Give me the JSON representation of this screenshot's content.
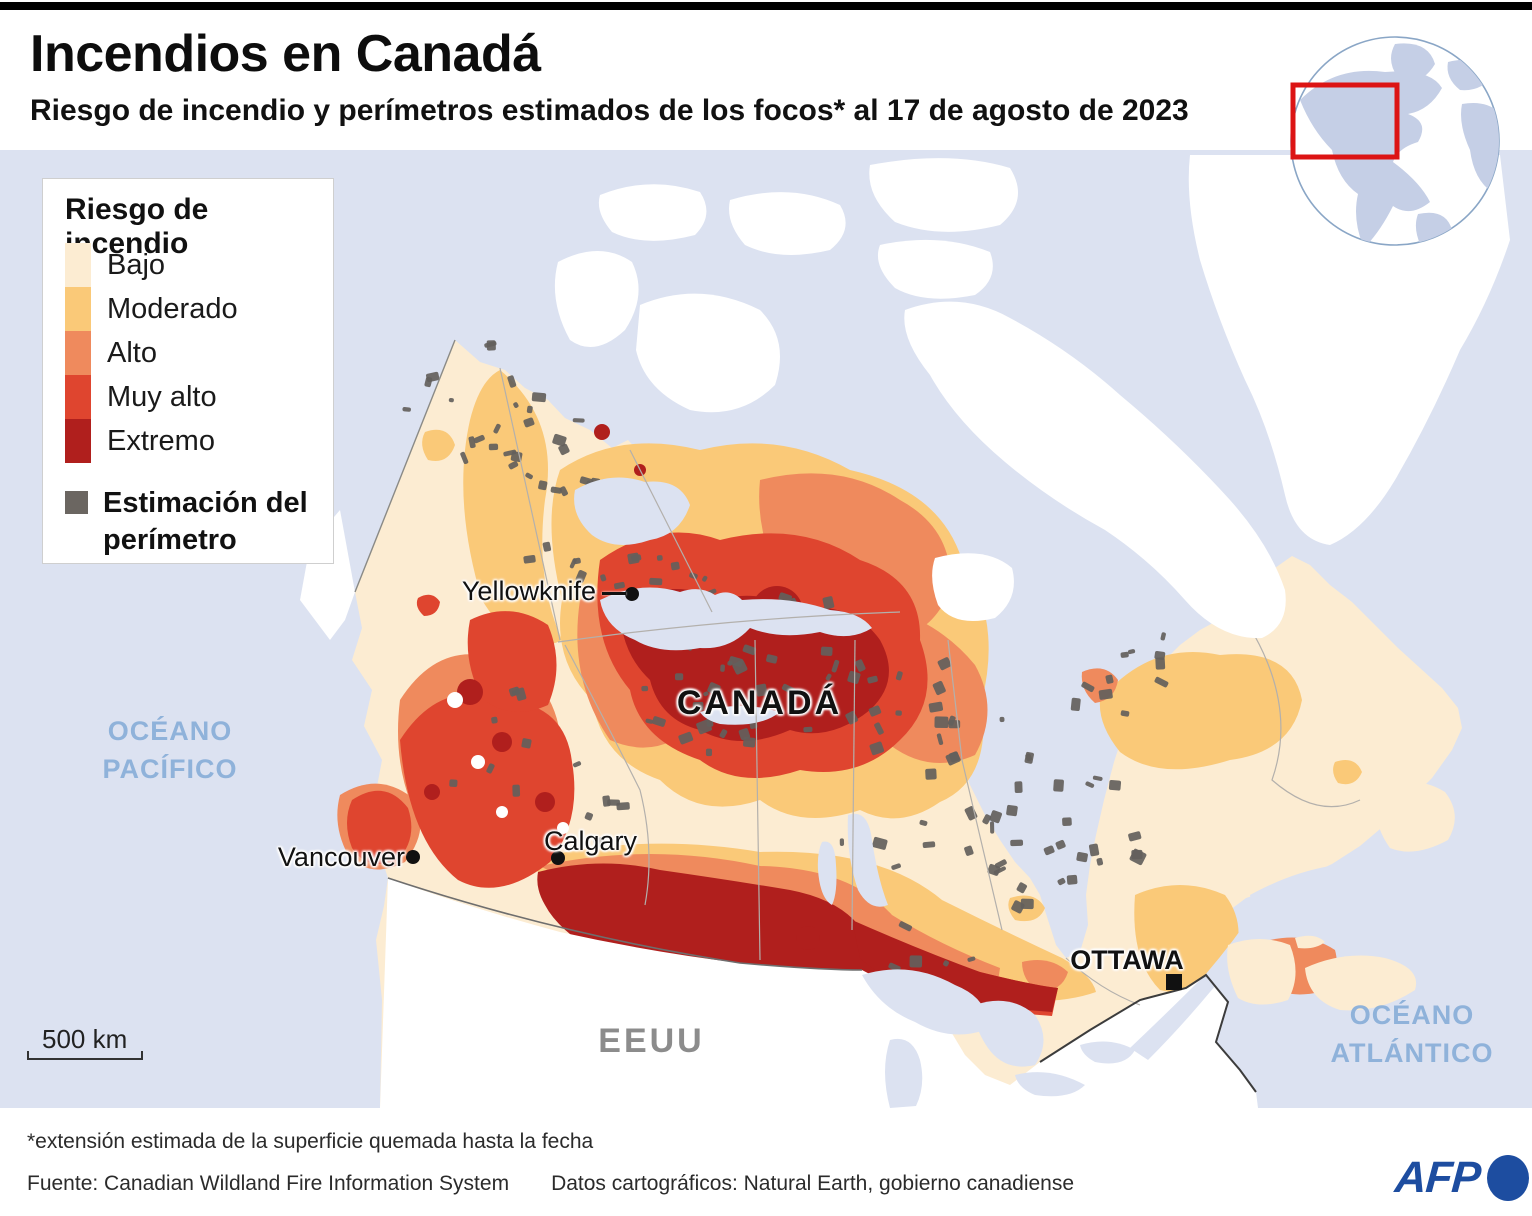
{
  "header": {
    "title": "Incendios en Canadá",
    "subtitle": "Riesgo de incendio y perímetros estimados de los focos* al 17 de agosto de 2023"
  },
  "legend": {
    "title": "Riesgo de incendio",
    "items": [
      {
        "label": "Bajo",
        "color": "#fcecd2"
      },
      {
        "label": "Moderado",
        "color": "#fac978"
      },
      {
        "label": "Alto",
        "color": "#ef8a5d"
      },
      {
        "label": "Muy alto",
        "color": "#df452f"
      },
      {
        "label": "Extremo",
        "color": "#b01f1d"
      }
    ],
    "perimeter": {
      "label": "Estimación del perímetro",
      "color": "#6b6661"
    }
  },
  "map": {
    "ocean_color": "#dce2f1",
    "labels": {
      "country": "CANADÁ",
      "us": "EEUU",
      "pacific": "OCÉANO PACÍFICO",
      "atlantic": "OCÉANO ATLÁNTICO"
    },
    "cities": {
      "yellowknife": "Yellowknife",
      "vancouver": "Vancouver",
      "calgary": "Calgary",
      "ottawa": "OTTAWA"
    },
    "scale_label": "500 km"
  },
  "inset": {
    "highlight_color": "#dc1414"
  },
  "footer": {
    "note": "*extensión estimada de la superficie quemada hasta la fecha",
    "source": "Fuente: Canadian Wildland Fire Information System",
    "credit": "Datos cartográficos: Natural Earth, gobierno canadiense",
    "logo": "AFP"
  }
}
